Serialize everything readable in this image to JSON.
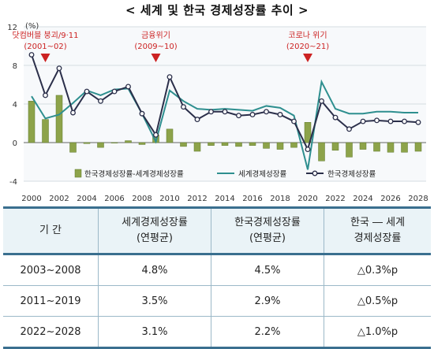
{
  "title": "< 세계 및 한국 경제성장률 추이 >",
  "chart_data": {
    "type": "bar+line",
    "y_unit": "(%)",
    "ylim": [
      -4,
      12
    ],
    "yticks": [
      -4,
      0,
      4,
      8,
      12
    ],
    "x": [
      2000,
      2001,
      2002,
      2003,
      2004,
      2005,
      2006,
      2007,
      2008,
      2009,
      2010,
      2011,
      2012,
      2013,
      2014,
      2015,
      2016,
      2017,
      2018,
      2019,
      2020,
      2021,
      2022,
      2023,
      2024,
      2025,
      2026,
      2027,
      2028
    ],
    "xticks": [
      2000,
      2002,
      2004,
      2006,
      2008,
      2010,
      2012,
      2014,
      2016,
      2018,
      2020,
      2022,
      2024,
      2026,
      2028
    ],
    "series": [
      {
        "name": "한국경제성장률-세계경제성장률",
        "type": "bar",
        "color": "#8da34a",
        "values": [
          4.3,
          2.4,
          4.9,
          -1.0,
          -0.1,
          -0.5,
          0.0,
          0.2,
          -0.2,
          0.8,
          1.4,
          -0.4,
          -0.9,
          -0.3,
          -0.3,
          -0.4,
          -0.3,
          -0.6,
          -0.7,
          -0.5,
          2.1,
          -1.9,
          -0.8,
          -1.5,
          -0.7,
          -0.9,
          -1.0,
          -1.0,
          -0.9
        ]
      },
      {
        "name": "세계경제성장률",
        "type": "line",
        "color": "#2e8f8f",
        "values": [
          4.8,
          2.5,
          2.9,
          4.1,
          5.4,
          4.9,
          5.5,
          5.6,
          3.0,
          0.1,
          5.4,
          4.3,
          3.5,
          3.4,
          3.5,
          3.4,
          3.3,
          3.8,
          3.6,
          2.8,
          -2.8,
          6.3,
          3.5,
          3.0,
          3.0,
          3.2,
          3.2,
          3.1,
          3.1
        ]
      },
      {
        "name": "한국경제성장률",
        "type": "line-marker",
        "color": "#2b2f4a",
        "values": [
          9.1,
          4.9,
          7.7,
          3.1,
          5.3,
          4.3,
          5.3,
          5.8,
          3.0,
          0.8,
          6.8,
          3.7,
          2.4,
          3.2,
          3.2,
          2.8,
          2.9,
          3.2,
          2.9,
          2.2,
          -0.7,
          4.3,
          2.6,
          1.4,
          2.2,
          2.3,
          2.2,
          2.2,
          2.1
        ]
      }
    ],
    "annotations": [
      {
        "text": "닷컴버블 붕괴/9·11",
        "range": "(2001~02)",
        "year": 2001
      },
      {
        "text": "금융위기",
        "range": "(2009~10)",
        "year": 2009
      },
      {
        "text": "코로나 위기",
        "range": "(2020~21)",
        "year": 2020
      }
    ],
    "annotation_color": "#cc2222",
    "legend_position": "bottom-center",
    "grid": "horizontal"
  },
  "table": {
    "headers": [
      [
        "기 간"
      ],
      [
        "세계경제성장률",
        "(연평균)"
      ],
      [
        "한국경제성장률",
        "(연평균)"
      ],
      [
        "한국 ― 세계",
        "경제성장률"
      ]
    ],
    "rows": [
      [
        "2003~2008",
        "4.8%",
        "4.5%",
        "△0.3%p"
      ],
      [
        "2011~2019",
        "3.5%",
        "2.9%",
        "△0.5%p"
      ],
      [
        "2022~2028",
        "3.1%",
        "2.2%",
        "△1.0%p"
      ]
    ]
  }
}
